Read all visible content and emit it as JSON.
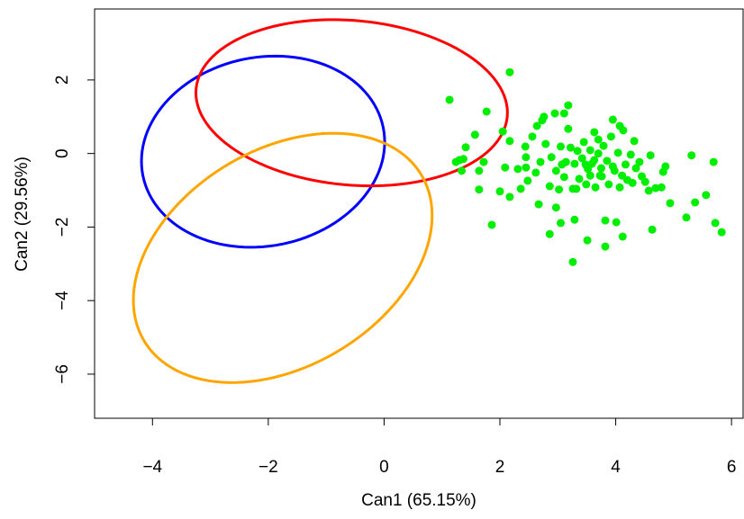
{
  "chart_data": {
    "type": "scatter",
    "x_label": "Can1 (65.15%)",
    "y_label": "Can2 (29.56%)",
    "xlim": [
      -5.0,
      6.2
    ],
    "ylim": [
      -7.2,
      3.93
    ],
    "xticks": [
      {
        "value": -4,
        "label": "−4"
      },
      {
        "value": -2,
        "label": "−2"
      },
      0,
      2,
      4,
      6
    ],
    "yticks": [
      {
        "value": -6,
        "label": "−6"
      },
      {
        "value": -4,
        "label": "−4"
      },
      {
        "value": -2,
        "label": "−2"
      },
      0,
      2
    ],
    "series": [
      {
        "color": "#00ee00",
        "x": [
          2.17,
          1.13,
          1.77,
          1.57,
          1.41,
          1.3,
          1.24,
          1.37,
          1.34,
          1.72,
          1.64,
          1.64,
          1.86,
          2.0,
          2.17,
          2.05,
          2.09,
          2.17,
          2.31,
          2.36,
          2.44,
          2.45,
          2.48,
          2.45,
          2.56,
          2.64,
          2.62,
          2.7,
          2.67,
          2.73,
          2.79,
          2.86,
          2.86,
          2.76,
          2.89,
          2.95,
          2.97,
          2.97,
          3.05,
          3.02,
          3.05,
          3.11,
          3.11,
          3.14,
          3.18,
          3.18,
          3.22,
          3.26,
          3.29,
          3.29,
          3.26,
          3.34,
          3.37,
          3.42,
          3.45,
          3.49,
          3.51,
          3.52,
          3.56,
          3.59,
          3.63,
          3.65,
          3.7,
          3.7,
          3.73,
          3.75,
          3.82,
          3.82,
          3.79,
          3.85,
          3.88,
          3.92,
          3.95,
          3.98,
          4.01,
          4.04,
          4.07,
          4.07,
          4.12,
          4.13,
          4.17,
          4.2,
          4.26,
          4.29,
          4.32,
          4.35,
          4.41,
          4.45,
          4.51,
          4.6,
          4.57,
          4.63,
          4.69,
          4.79,
          4.82,
          4.86,
          4.94,
          5.22,
          5.31,
          5.37,
          5.56,
          5.69,
          5.72,
          5.83,
          3.56,
          3.32,
          3.07,
          3.48,
          3.76,
          3.95,
          4.11,
          3.63
        ],
        "values": [
          2.21,
          1.46,
          1.14,
          0.51,
          0.17,
          -0.18,
          -0.23,
          -0.15,
          -0.47,
          -0.23,
          -0.47,
          -0.98,
          -1.94,
          -1.03,
          0.34,
          0.6,
          -0.38,
          -1.18,
          -0.42,
          -0.96,
          0.19,
          -0.38,
          -0.74,
          -0.1,
          0.46,
          0.75,
          -0.52,
          -0.23,
          -1.38,
          0.9,
          0.26,
          -0.89,
          -2.19,
          1.0,
          -0.1,
          1.09,
          -0.47,
          -1.47,
          -1.89,
          -0.98,
          0.19,
          1.09,
          -0.64,
          -0.23,
          1.31,
          0.67,
          0.16,
          -0.96,
          -0.28,
          -1.8,
          -2.95,
          0.07,
          -0.69,
          -0.13,
          0.31,
          -0.84,
          -2.36,
          -0.42,
          0.09,
          -0.28,
          0.58,
          -0.92,
          0.0,
          0.38,
          -0.6,
          -0.4,
          -2.53,
          -1.82,
          0.21,
          -0.2,
          -0.84,
          0.46,
          0.92,
          -0.47,
          -1.87,
          0.02,
          0.75,
          -0.92,
          -2.26,
          0.63,
          -0.3,
          -0.72,
          -0.03,
          -0.8,
          0.34,
          -0.4,
          -0.23,
          -0.62,
          -0.77,
          -0.05,
          -1.01,
          -2.07,
          -0.94,
          -0.92,
          -0.5,
          -0.35,
          -1.35,
          -1.74,
          -0.05,
          -1.33,
          -1.13,
          -0.23,
          -1.89,
          -2.14,
          -0.6,
          -0.96,
          -0.3,
          -0.3,
          -0.62,
          -0.35,
          -0.6,
          -0.18
        ]
      }
    ],
    "ellipses": [
      {
        "color": "#0000ff",
        "cx": -2.09,
        "cy": 0.05,
        "sx": 2.1,
        "sy": 2.6,
        "r": 0.1
      },
      {
        "color": "#ff0000",
        "cx": -0.56,
        "cy": 1.38,
        "sx": 2.69,
        "sy": 2.26,
        "r": -0.12
      },
      {
        "color": "#ffa500",
        "cx": -1.75,
        "cy": -2.84,
        "sx": 2.58,
        "sy": 3.39,
        "r": 0.34
      }
    ]
  }
}
